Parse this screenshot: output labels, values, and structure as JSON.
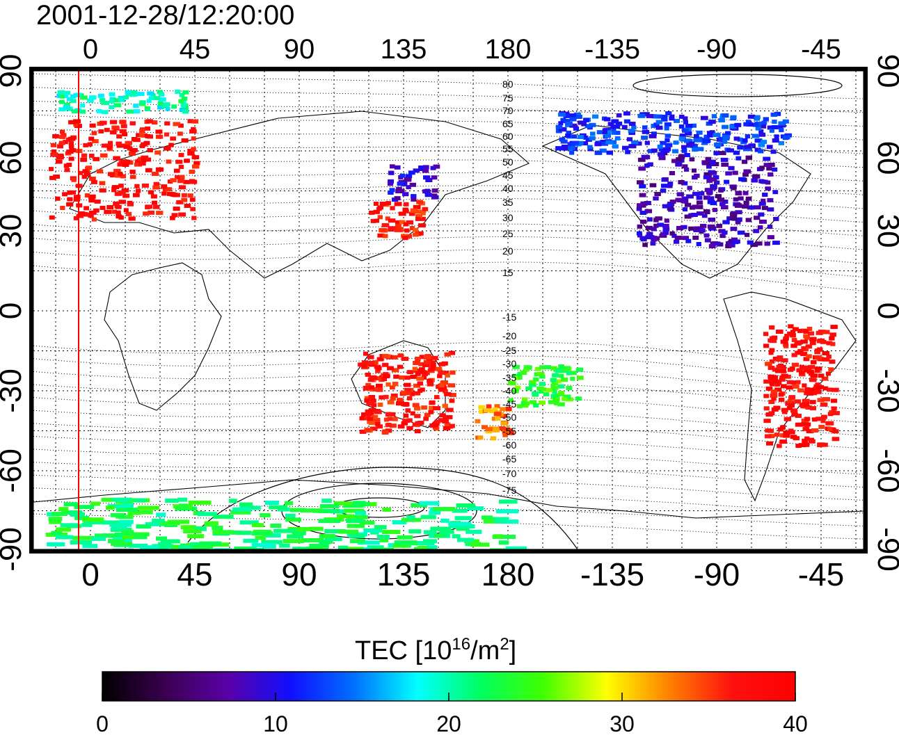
{
  "title": "2001-12-28/12:20:00",
  "map": {
    "lon_ticks": [
      "0",
      "45",
      "90",
      "135",
      "180",
      "-135",
      "-90",
      "-45"
    ],
    "lat_ticks_left": [
      "90",
      "60",
      "30",
      "0",
      "-30",
      "-60",
      "-90"
    ],
    "lat_ticks_right": [
      "90",
      "60",
      "30",
      "0",
      "-30",
      "-60",
      "-90"
    ],
    "contour_labels": [
      "80",
      "75",
      "70",
      "65",
      "60",
      "55",
      "50",
      "45",
      "40",
      "35",
      "30",
      "25",
      "20",
      "15",
      "-15",
      "-20",
      "-25",
      "-30",
      "-35",
      "-40",
      "-45",
      "-50",
      "-55",
      "-60",
      "-65",
      "-70",
      "-75"
    ],
    "marker_line_color": "#ff0000"
  },
  "colorbar": {
    "label": "TEC  [10",
    "label_sup": "16",
    "label_mid": "/m",
    "label_sup2": "2",
    "label_end": "]",
    "ticks": [
      "0",
      "10",
      "20",
      "30",
      "40"
    ],
    "min": 0,
    "max": 40,
    "stops": [
      "#000000",
      "#3a0050",
      "#5a00a8",
      "#1010ff",
      "#0070ff",
      "#00ffff",
      "#00ff60",
      "#40ff00",
      "#ffff00",
      "#ff8000",
      "#ff1010",
      "#ff0000"
    ]
  },
  "tec_regions": [
    {
      "name": "europe",
      "lon": [
        -18,
        45
      ],
      "lat": [
        35,
        72
      ],
      "value": 38
    },
    {
      "name": "north-scandinavia",
      "lon": [
        -15,
        40
      ],
      "lat": [
        75,
        83
      ],
      "value": 20
    },
    {
      "name": "east-china",
      "lon": [
        120,
        143
      ],
      "lat": [
        28,
        42
      ],
      "value": 37
    },
    {
      "name": "japan-north",
      "lon": [
        128,
        148
      ],
      "lat": [
        42,
        55
      ],
      "value": 9
    },
    {
      "name": "north-america",
      "lon": [
        -125,
        -65
      ],
      "lat": [
        25,
        60
      ],
      "value": 8
    },
    {
      "name": "canada-north",
      "lon": [
        -160,
        -60
      ],
      "lat": [
        60,
        75
      ],
      "value": 12
    },
    {
      "name": "south-america",
      "lon": [
        -70,
        -40
      ],
      "lat": [
        -50,
        -5
      ],
      "value": 38
    },
    {
      "name": "australia",
      "lon": [
        115,
        155
      ],
      "lat": [
        -45,
        -15
      ],
      "value": 37
    },
    {
      "name": "new-zealand",
      "lon": [
        165,
        180
      ],
      "lat": [
        -48,
        -35
      ],
      "value": 33
    },
    {
      "name": "pacific-south",
      "lon": [
        -180,
        -150
      ],
      "lat": [
        -35,
        -20
      ],
      "value": 24
    },
    {
      "name": "antarctica",
      "lon": [
        -20,
        180
      ],
      "lat": [
        -90,
        -70
      ],
      "value": 22
    }
  ]
}
